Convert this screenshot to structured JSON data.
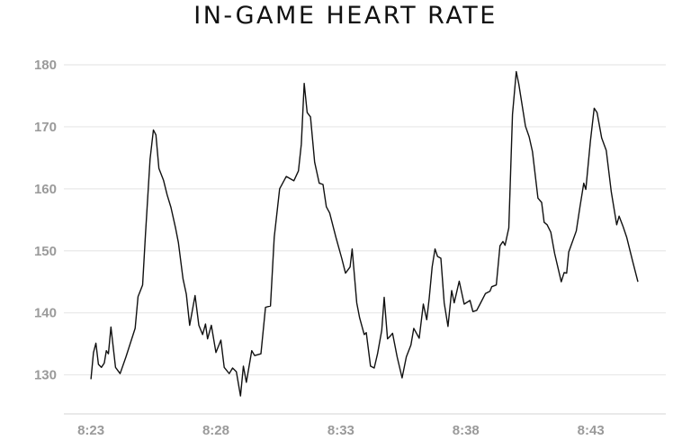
{
  "chart_data": {
    "type": "line",
    "title": "IN-GAME HEART RATE",
    "xlabel": "",
    "ylabel": "",
    "xlim": [
      "8:21:55",
      "8:46:00"
    ],
    "ylim": [
      123.7,
      181.6
    ],
    "x_ticks": [
      "8:23",
      "8:28",
      "8:33",
      "8:38",
      "8:43"
    ],
    "y_ticks": [
      130,
      140,
      150,
      160,
      170,
      180
    ],
    "grid": "horizontal",
    "line_color": "#111111",
    "grid_color": "#e8e8e8",
    "tick_color": "#9a9a9a",
    "series": [
      {
        "x": [
          "8:23:00",
          "8:23:06",
          "8:23:12",
          "8:23:18",
          "8:23:25",
          "8:23:32",
          "8:23:37",
          "8:23:42",
          "8:23:48",
          "8:23:59",
          "8:24:10",
          "8:24:24",
          "8:24:46",
          "8:24:53",
          "8:25:04",
          "8:25:11",
          "8:25:22",
          "8:25:30",
          "8:25:36",
          "8:25:43",
          "8:25:54",
          "8:26:03",
          "8:26:12",
          "8:26:23",
          "8:26:30",
          "8:26:41",
          "8:26:49",
          "8:26:57",
          "8:27:10",
          "8:27:19",
          "8:27:28",
          "8:27:35",
          "8:27:40",
          "8:27:49",
          "8:28:00",
          "8:28:12",
          "8:28:20",
          "8:28:32",
          "8:28:40",
          "8:28:49",
          "8:28:59",
          "8:29:06",
          "8:29:13",
          "8:29:26",
          "8:29:33",
          "8:29:48",
          "8:29:59",
          "8:30:11",
          "8:30:20",
          "8:30:33",
          "8:30:49",
          "8:31:07",
          "8:31:18",
          "8:31:25",
          "8:31:32",
          "8:31:39",
          "8:31:47",
          "8:31:57",
          "8:32:08",
          "8:32:17",
          "8:32:25",
          "8:32:33",
          "8:32:48",
          "8:33:02",
          "8:33:11",
          "8:33:22",
          "8:33:27",
          "8:33:38",
          "8:33:45",
          "8:33:56",
          "8:34:01",
          "8:34:11",
          "8:34:20",
          "8:34:28",
          "8:34:38",
          "8:34:44",
          "8:34:52",
          "8:34:59",
          "8:35:04",
          "8:35:15",
          "8:35:27",
          "8:35:37",
          "8:35:48",
          "8:35:55",
          "8:36:08",
          "8:36:18",
          "8:36:26",
          "8:36:32",
          "8:36:39",
          "8:36:46",
          "8:36:52",
          "8:37:00",
          "8:37:08",
          "8:37:17",
          "8:37:26",
          "8:37:32",
          "8:37:44",
          "8:37:56",
          "8:38:10",
          "8:38:17",
          "8:38:26",
          "8:38:34",
          "8:38:47",
          "8:38:58",
          "8:39:02",
          "8:39:13",
          "8:39:22",
          "8:39:29",
          "8:39:34",
          "8:39:43",
          "8:39:52",
          "8:40:01",
          "8:40:07",
          "8:40:23",
          "8:40:32",
          "8:40:40",
          "8:40:53",
          "8:41:02",
          "8:41:08",
          "8:41:15",
          "8:41:24",
          "8:41:33",
          "8:41:49",
          "8:41:56",
          "8:42:02",
          "8:42:07",
          "8:42:25",
          "8:42:34",
          "8:42:43",
          "8:42:48",
          "8:42:59",
          "8:43:08",
          "8:43:15",
          "8:43:26",
          "8:43:37",
          "8:43:49",
          "8:44:02",
          "8:44:08",
          "8:44:17",
          "8:44:26",
          "8:44:40",
          "8:44:53"
        ],
        "y": [
          129.3,
          133.6,
          135.1,
          131.7,
          131.2,
          131.9,
          133.9,
          133.4,
          137.7,
          131.2,
          130.2,
          132.9,
          137.5,
          142.6,
          144.5,
          152.7,
          164.8,
          169.5,
          168.7,
          163.3,
          161.4,
          159.0,
          157.0,
          153.7,
          151.3,
          145.5,
          143.0,
          138.0,
          142.8,
          138.0,
          136.5,
          138.2,
          135.8,
          138.0,
          133.6,
          135.6,
          131.2,
          130.2,
          131.1,
          130.5,
          126.6,
          131.4,
          128.8,
          133.9,
          133.1,
          133.4,
          140.9,
          141.1,
          152.2,
          160.0,
          162.0,
          161.3,
          162.9,
          167.2,
          177.0,
          172.3,
          171.6,
          164.3,
          160.9,
          160.7,
          157.1,
          156.1,
          152.2,
          148.8,
          146.4,
          147.4,
          150.3,
          141.6,
          139.2,
          136.5,
          136.8,
          131.4,
          131.1,
          133.4,
          137.2,
          142.5,
          135.8,
          136.3,
          136.7,
          132.9,
          129.5,
          132.9,
          134.8,
          137.5,
          135.9,
          141.4,
          138.9,
          142.3,
          147.4,
          150.3,
          149.1,
          148.8,
          141.6,
          137.8,
          143.6,
          141.6,
          145.1,
          141.4,
          142.0,
          140.2,
          140.4,
          141.4,
          143.1,
          143.5,
          144.2,
          144.5,
          150.8,
          151.5,
          150.9,
          153.7,
          172.0,
          178.9,
          176.9,
          170.1,
          168.4,
          166.0,
          158.5,
          157.8,
          154.6,
          154.2,
          153.0,
          149.6,
          145.0,
          146.5,
          146.4,
          149.8,
          153.2,
          157.1,
          160.9,
          159.9,
          167.7,
          173.0,
          172.3,
          168.2,
          166.2,
          159.5,
          154.2,
          155.6,
          154.0,
          152.2,
          148.4,
          145.0
        ]
      }
    ]
  }
}
